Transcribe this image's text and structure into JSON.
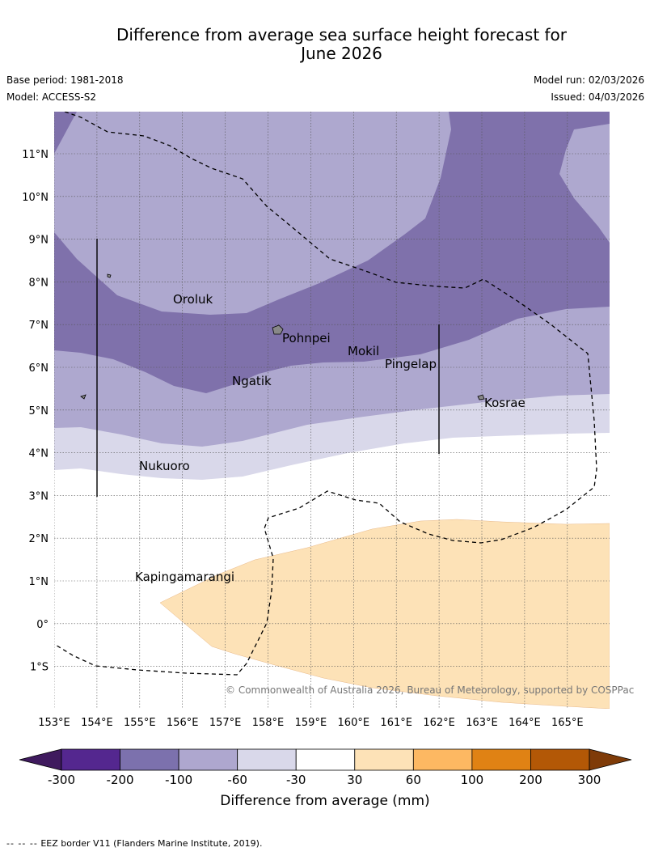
{
  "title": {
    "line1": "Difference from average sea surface height forecast for",
    "line2": "June 2026"
  },
  "meta": {
    "base_period": "Base period: 1981-2018",
    "model": "Model: ACCESS-S2",
    "model_run": "Model run: 02/03/2026",
    "issued": "Issued: 04/03/2026"
  },
  "map": {
    "lat_labels": [
      "11°N",
      "10°N",
      "9°N",
      "8°N",
      "7°N",
      "6°N",
      "5°N",
      "4°N",
      "3°N",
      "2°N",
      "1°N",
      "0°",
      "1°S"
    ],
    "lon_labels": [
      "153°E",
      "154°E",
      "155°E",
      "156°E",
      "157°E",
      "158°E",
      "159°E",
      "160°E",
      "161°E",
      "162°E",
      "163°E",
      "164°E",
      "165°E"
    ],
    "places": [
      {
        "name": "Oroluk"
      },
      {
        "name": "Pohnpei"
      },
      {
        "name": "Mokil"
      },
      {
        "name": "Pingelap"
      },
      {
        "name": "Ngatik"
      },
      {
        "name": "Kosrae"
      },
      {
        "name": "Nukuoro"
      },
      {
        "name": "Kapingamarangi"
      }
    ],
    "copyright": "© Commonwealth of Australia 2026, Bureau of Meteorology, supported by COSPPac"
  },
  "colorbar": {
    "ticks": [
      "-300",
      "-200",
      "-100",
      "-60",
      "-30",
      "30",
      "60",
      "100",
      "200",
      "300"
    ],
    "colors": [
      "#3f1a5e",
      "#54278f",
      "#7c71ad",
      "#aea7cf",
      "#d9d8ea",
      "#ffffff",
      "#fde2b7",
      "#fdb862",
      "#e08214",
      "#b35806",
      "#7f3b08"
    ],
    "label": "Difference from average (mm)"
  },
  "palette": {
    "band_minus100": "#7f71ab",
    "band_minus60": "#aea8cf",
    "band_minus30": "#d9d8ea",
    "band_plus30": "#fde2b7"
  },
  "footer": {
    "dash_symbol": "-- -- --",
    "text": "EEZ border V11 (Flanders Marine Institute, 2019)."
  }
}
